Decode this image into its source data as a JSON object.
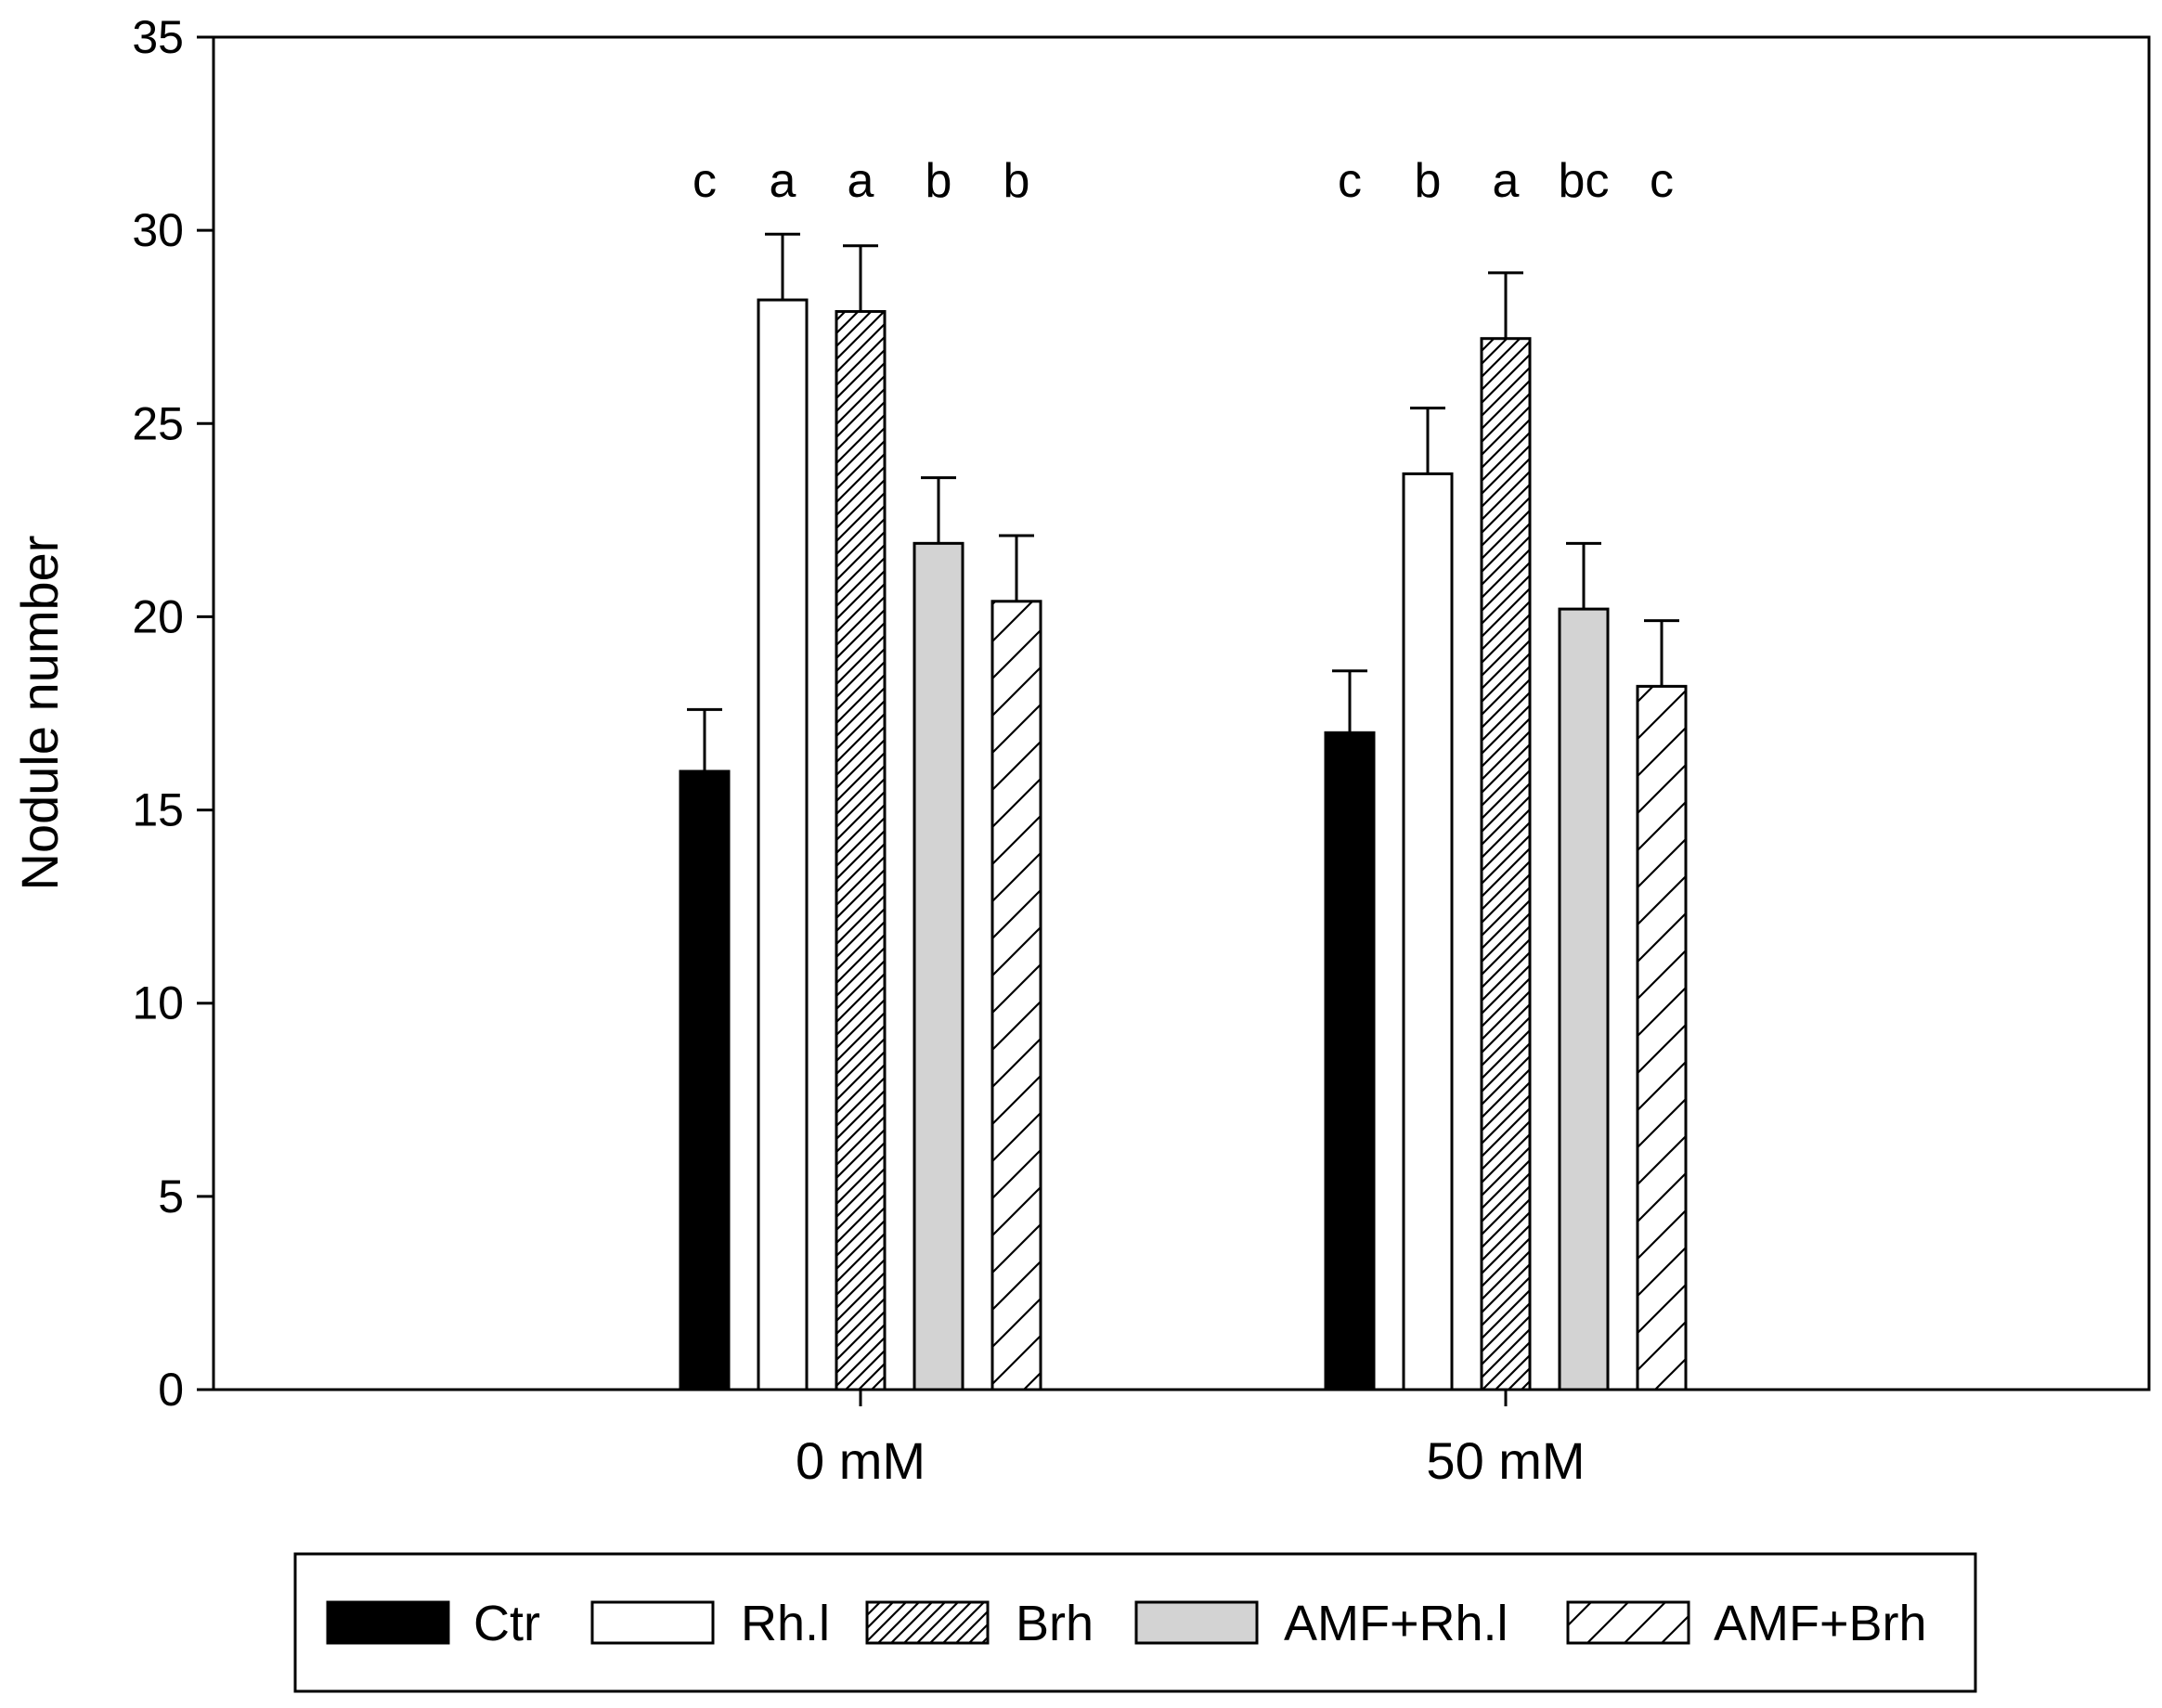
{
  "chart_data": {
    "type": "bar",
    "title": "",
    "xlabel": "",
    "ylabel": "Nodule number",
    "ylim": [
      0,
      35
    ],
    "yticks": [
      0,
      5,
      10,
      15,
      20,
      25,
      30,
      35
    ],
    "grid": false,
    "legend_position": "bottom",
    "categories": [
      "0 mM",
      "50 mM"
    ],
    "series": [
      {
        "name": "Ctr",
        "pattern": "solid-black",
        "values": [
          16.0,
          17.0
        ],
        "errors": [
          1.6,
          1.6
        ],
        "significance": [
          "c",
          "c"
        ]
      },
      {
        "name": "Rh.l",
        "pattern": "white",
        "values": [
          28.2,
          23.7
        ],
        "errors": [
          1.7,
          1.7
        ],
        "significance": [
          "a",
          "b"
        ]
      },
      {
        "name": "Brh",
        "pattern": "dense-hatch",
        "values": [
          27.9,
          27.2
        ],
        "errors": [
          1.7,
          1.7
        ],
        "significance": [
          "a",
          "a"
        ]
      },
      {
        "name": "AMF+Rh.l",
        "pattern": "light-gray",
        "values": [
          21.9,
          20.2
        ],
        "errors": [
          1.7,
          1.7
        ],
        "significance": [
          "b",
          "bc"
        ]
      },
      {
        "name": "AMF+Brh",
        "pattern": "sparse-hatch",
        "values": [
          20.4,
          18.2
        ],
        "errors": [
          1.7,
          1.7
        ],
        "significance": [
          "b",
          "c"
        ]
      }
    ]
  },
  "colors": {
    "black": "#000000",
    "gray": "#d3d3d3",
    "white": "#ffffff"
  }
}
